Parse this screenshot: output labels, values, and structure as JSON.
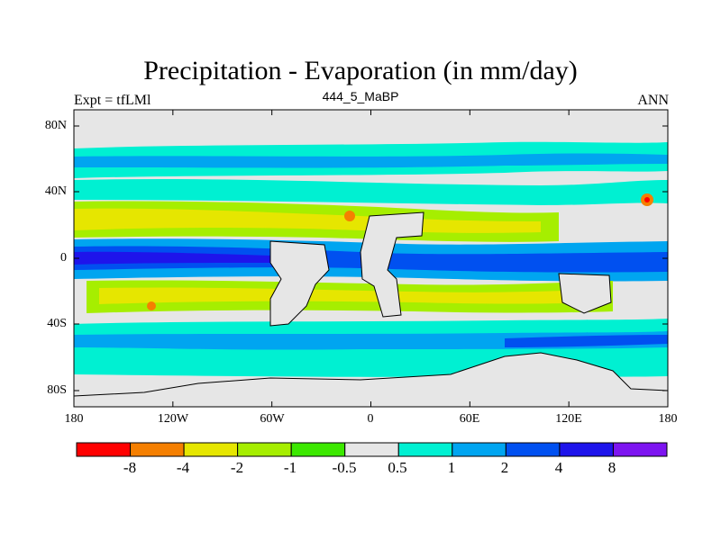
{
  "title": "Precipitation - Evaporation (in mm/day)",
  "subtitle": "444_5_MaBP",
  "left_string": "Expt = tfLMl",
  "right_string": "ANN",
  "lat_ticks": [
    "80N",
    "40N",
    "0",
    "40S",
    "80S"
  ],
  "lon_ticks": [
    "180",
    "120W",
    "60W",
    "0",
    "60E",
    "120E",
    "180"
  ],
  "colorbar": {
    "labels": [
      "-8",
      "-4",
      "-2",
      "-1",
      "-0.5",
      "0.5",
      "1",
      "2",
      "4",
      "8"
    ],
    "colors": [
      "#ff0000",
      "#f57f00",
      "#e6e600",
      "#a6ee00",
      "#3ce800",
      "#e6e6e6",
      "#00f0d2",
      "#00a5f0",
      "#0050f0",
      "#1e14eb",
      "#7d14f0"
    ]
  },
  "map_colors": {
    "land": "#e6e6e6",
    "wet_weak": "#00f0d2",
    "wet_mid": "#00a5f0",
    "wet_strong": "#0050f0",
    "wet_vstrong": "#1e14eb",
    "dry_weak": "#3ce800",
    "dry_mid": "#a6ee00",
    "dry_strong": "#e6e600",
    "dry_vstrong": "#f57f00",
    "dry_extreme": "#ff0000"
  }
}
